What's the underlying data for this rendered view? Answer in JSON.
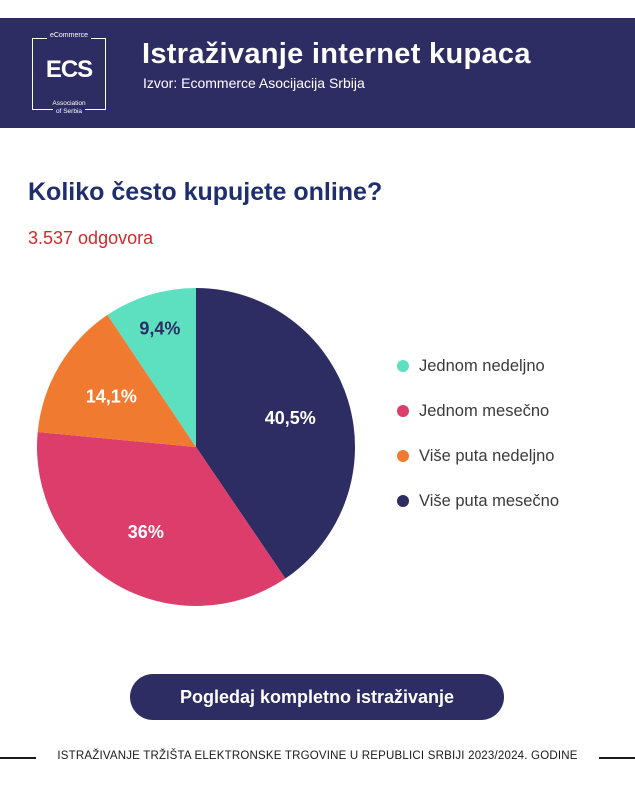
{
  "header": {
    "logo_top": "eCommerce",
    "logo_mark": "ECS",
    "logo_bottom_1": "Association",
    "logo_bottom_2": "of Serbia",
    "title": "Istraživanje internet kupaca",
    "source": "Izvor: Ecommerce Asocijacija Srbija",
    "background": "#2e2d63"
  },
  "chart_data": {
    "type": "pie",
    "title": "Koliko često kupujete online?",
    "subtitle": "3.537 odgovora",
    "legend_placement": "right",
    "slices": [
      {
        "label": "Više puta mesečno",
        "value": 40.5,
        "display": "40,5%",
        "color": "#2e2d63",
        "text_color": "#ffffff"
      },
      {
        "label": "Jednom mesečno",
        "value": 36.0,
        "display": "36%",
        "color": "#dc3d6a",
        "text_color": "#ffffff"
      },
      {
        "label": "Više puta nedeljno",
        "value": 14.1,
        "display": "14,1%",
        "color": "#f07a30",
        "text_color": "#ffffff"
      },
      {
        "label": "Jednom nedeljno",
        "value": 9.4,
        "display": "9,4%",
        "color": "#5de0c0",
        "text_color": "#2e2d63"
      }
    ],
    "legend_order": [
      "Jednom nedeljno",
      "Jednom mesečno",
      "Više puta nedeljno",
      "Više puta mesečno"
    ]
  },
  "cta": {
    "label": "Pogledaj kompletno istraživanje"
  },
  "footer": {
    "text": "ISTRAŽIVANJE TRŽIŠTA ELEKTRONSKE TRGOVINE U REPUBLICI SRBIJI 2023/2024. GODINE"
  }
}
